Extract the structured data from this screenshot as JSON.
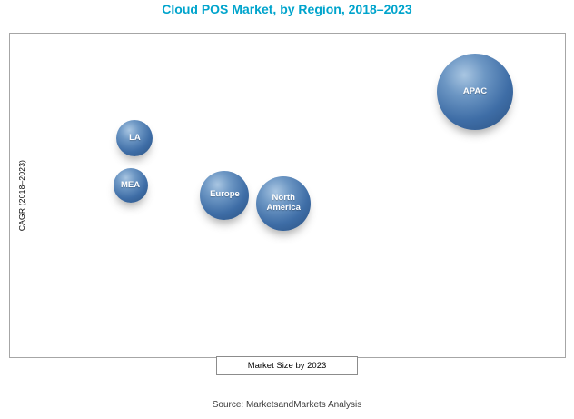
{
  "title": "Cloud POS Market, by Region, 2018–2023",
  "source": "Source: MarketsandMarkets Analysis",
  "colors": {
    "title": "#00a4cc",
    "bubble_highlight": "#a9c6e2",
    "bubble_mid": "#6d97c4",
    "bubble_base": "#3e6da6",
    "bubble_dark": "#2a5080",
    "bubble_label_text": "#ffffff",
    "frame_border": "#a6a6a6"
  },
  "chart_data": {
    "type": "scatter",
    "subtype": "bubble",
    "title": "Cloud POS Market, by Region, 2018–2023",
    "xlabel": "Market Size by 2023",
    "ylabel": "CAGR (2018–2023)",
    "x_axis_ticks": "none (unlabeled axis, relative scale 0–100)",
    "y_axis_ticks": "none (unlabeled axis, relative scale 0–100)",
    "x_range": [
      0,
      100
    ],
    "y_range": [
      0,
      100
    ],
    "grid": false,
    "legend": false,
    "points": [
      {
        "label": "APAC",
        "x": 83.8,
        "y": 82.0,
        "radius_px": 42,
        "note": "largest market size, highest CAGR"
      },
      {
        "label": "LA",
        "x": 22.5,
        "y": 67.6,
        "radius_px": 20
      },
      {
        "label": "MEA",
        "x": 21.7,
        "y": 53.0,
        "radius_px": 19
      },
      {
        "label": "Europe",
        "x": 38.7,
        "y": 50.1,
        "radius_px": 27
      },
      {
        "label": "North America",
        "x": 49.3,
        "y": 47.6,
        "radius_px": 30
      }
    ]
  }
}
